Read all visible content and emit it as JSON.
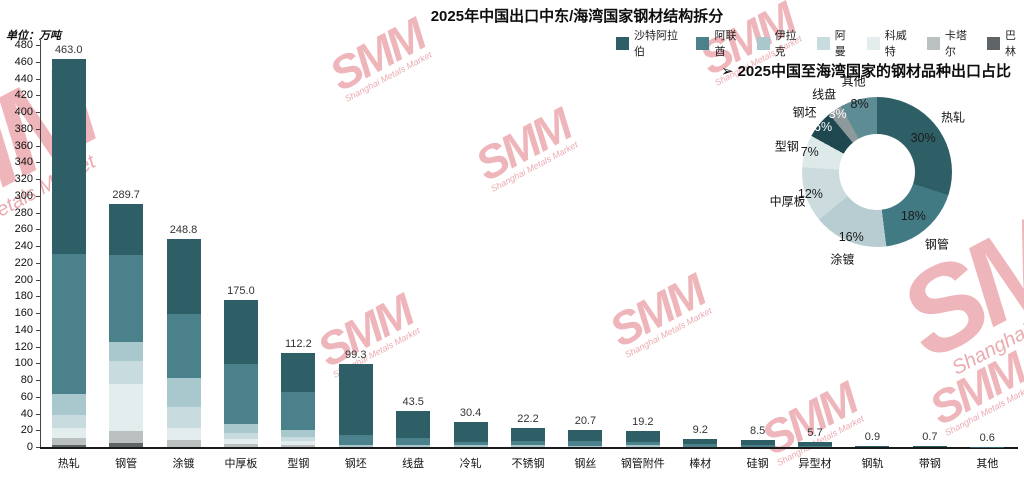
{
  "watermark": {
    "text": "SMM",
    "subtext": "Shanghai Metals Market"
  },
  "chart_data": [
    {
      "type": "bar",
      "stacked": true,
      "title": "2025年中国出口中东/海湾国家钢材结构拆分",
      "unit_label": "单位：万吨",
      "ylim": [
        0,
        480
      ],
      "ytick_step": 20,
      "grid": false,
      "legend_position": "top-right",
      "categories": [
        "热轧",
        "钢管",
        "涂镀",
        "中厚板",
        "型钢",
        "钢坯",
        "线盘",
        "冷轧",
        "不锈钢",
        "钢丝",
        "钢管附件",
        "棒材",
        "硅钢",
        "异型材",
        "钢轨",
        "带钢",
        "其他"
      ],
      "totals": [
        463.0,
        289.7,
        248.8,
        175.0,
        112.2,
        99.3,
        43.5,
        30.4,
        22.2,
        20.7,
        19.2,
        9.2,
        8.5,
        5.7,
        0.9,
        0.7,
        0.6
      ],
      "series": [
        {
          "name": "沙特阿拉伯",
          "color": "#2F5F66",
          "values": [
            232,
            60,
            90,
            76,
            46,
            85,
            33,
            24,
            15,
            14,
            13,
            6,
            6,
            4,
            0.9,
            0.7,
            0.6
          ]
        },
        {
          "name": "阿联酋",
          "color": "#4A818A",
          "values": [
            168,
            104,
            76,
            72,
            46,
            12,
            8,
            4,
            5,
            5,
            4,
            3.2,
            2.5,
            1.7,
            0,
            0,
            0
          ]
        },
        {
          "name": "伊拉克",
          "color": "#A9C8CD",
          "values": [
            25,
            23,
            35,
            10,
            8,
            2.3,
            2.5,
            2.4,
            2.2,
            1.7,
            2.2,
            0,
            0,
            0,
            0,
            0,
            0
          ]
        },
        {
          "name": "阿曼",
          "color": "#C8DBDE",
          "values": [
            15,
            28,
            25,
            8,
            5,
            0,
            0,
            0,
            0,
            0,
            0,
            0,
            0,
            0,
            0,
            0,
            0
          ]
        },
        {
          "name": "科威特",
          "color": "#E3EDED",
          "values": [
            12,
            56,
            15,
            5,
            5,
            0,
            0,
            0,
            0,
            0,
            0,
            0,
            0,
            0,
            0,
            0,
            0
          ]
        },
        {
          "name": "卡塔尔",
          "color": "#BBC1C1",
          "values": [
            8,
            14,
            7.8,
            4,
            2.2,
            0,
            0,
            0,
            0,
            0,
            0,
            0,
            0,
            0,
            0,
            0,
            0
          ]
        },
        {
          "name": "巴林",
          "color": "#5F6567",
          "values": [
            3,
            4.7,
            0,
            0,
            0,
            0,
            0,
            0,
            0,
            0,
            0,
            0,
            0,
            0,
            0,
            0,
            0
          ]
        }
      ],
      "stack_top_series": "沙特阿拉伯"
    },
    {
      "type": "pie",
      "donut": true,
      "title_arrow": "➢",
      "title": "2025中国至海湾国家的钢材品种出口占比",
      "slices": [
        {
          "label": "热轧",
          "pct": 30,
          "color": "#2F5F66",
          "pct_label_color": "#1a1a1a"
        },
        {
          "label": "钢管",
          "pct": 18,
          "color": "#417A83",
          "pct_label_color": "#1a1a1a"
        },
        {
          "label": "涂镀",
          "pct": 16,
          "color": "#B7CDD1",
          "pct_label_color": "#1a1a1a"
        },
        {
          "label": "中厚板",
          "pct": 12,
          "color": "#CBDBDE",
          "pct_label_color": "#1a1a1a"
        },
        {
          "label": "型钢",
          "pct": 7,
          "color": "#DEE9EA",
          "pct_label_color": "#1a1a1a"
        },
        {
          "label": "钢坯",
          "pct": 6,
          "color": "#1E4750",
          "pct_label_color": "#ffffff"
        },
        {
          "label": "线盘",
          "pct": 3,
          "color": "#8E999C",
          "pct_label_color": "#ffffff"
        },
        {
          "label": "其他",
          "pct": 8,
          "color": "#5E8C95",
          "pct_label_color": "#1a1a1a"
        }
      ]
    }
  ]
}
